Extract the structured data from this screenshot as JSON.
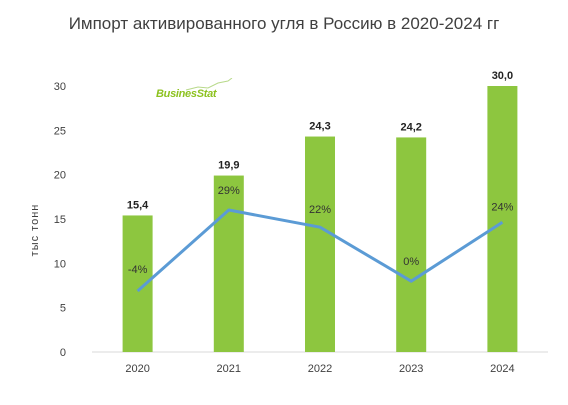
{
  "colors": {
    "bar": "#8dc63f",
    "line": "#5b9bd5",
    "axis": "#d9d9d9",
    "logo": "#8dc21f"
  },
  "logo": {
    "text": "BusinesStat",
    "icon": "growth-line-icon"
  },
  "chart_data": {
    "type": "bar",
    "title": "Импорт активированного угля в Россию в 2020-2024 гг",
    "ylabel": "тыс тонн",
    "xlabel": "",
    "ylim": [
      0,
      30
    ],
    "yticks": [
      "0",
      "5",
      "10",
      "15",
      "20",
      "25",
      "30"
    ],
    "categories": [
      "2020",
      "2021",
      "2022",
      "2023",
      "2024"
    ],
    "values": [
      15.4,
      19.9,
      24.3,
      24.2,
      30.0
    ],
    "value_labels": [
      "15,4",
      "19,9",
      "24,3",
      "24,2",
      "30,0"
    ],
    "growth_line": {
      "type": "line",
      "values_percent": [
        -4,
        29,
        22,
        0,
        24
      ],
      "labels": [
        "-4%",
        "29%",
        "22%",
        "0%",
        "24%"
      ]
    },
    "grid": false,
    "legend": "none"
  }
}
